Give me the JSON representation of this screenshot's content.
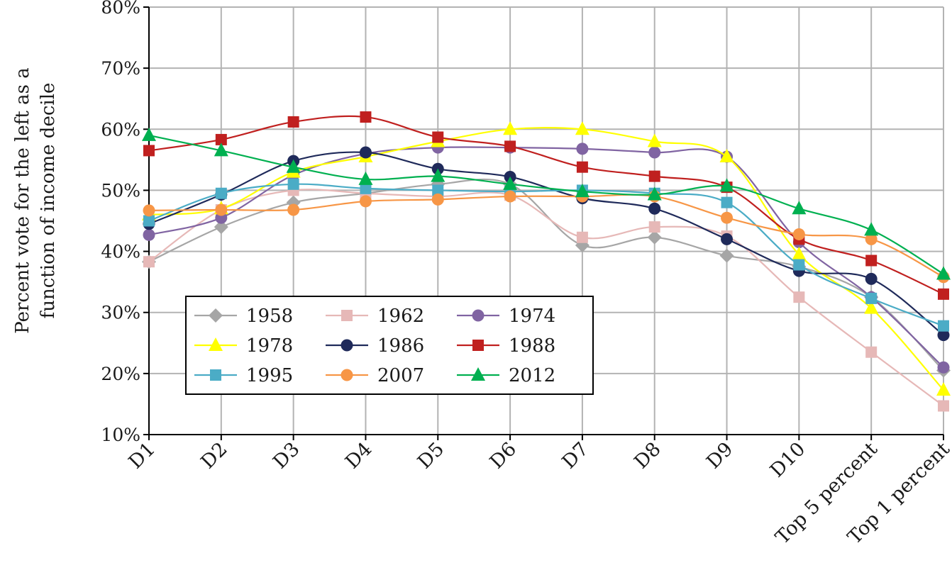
{
  "chart_data": {
    "type": "line",
    "ylabel_lines": [
      "Percent vote for the left as a",
      "function of income decile"
    ],
    "categories": [
      "D1",
      "D2",
      "D3",
      "D4",
      "D5",
      "D6",
      "D7",
      "D8",
      "D9",
      "D10",
      "Top 5 percent",
      "Top 1 percent"
    ],
    "ylim": [
      10,
      80
    ],
    "yticks": [
      10,
      20,
      30,
      40,
      50,
      60,
      70,
      80
    ],
    "ytick_labels": [
      "10%",
      "20%",
      "30%",
      "40%",
      "50%",
      "60%",
      "70%",
      "80%"
    ],
    "grid": true,
    "legend_position": "bottom-left",
    "series": [
      {
        "name": "1958",
        "color": "#a6a6a6",
        "marker": "diamond",
        "values": [
          38.3,
          44.0,
          48.0,
          49.5,
          51.0,
          51.0,
          41.0,
          42.3,
          39.3,
          37.5,
          32.5,
          20.5
        ]
      },
      {
        "name": "1962",
        "color": "#e6b8b7",
        "marker": "square",
        "values": [
          38.3,
          46.8,
          50.0,
          49.5,
          49.0,
          49.2,
          42.3,
          44.0,
          42.5,
          32.5,
          23.5,
          14.7
        ]
      },
      {
        "name": "1974",
        "color": "#8064a2",
        "marker": "circle",
        "values": [
          42.7,
          45.5,
          52.5,
          56.0,
          57.0,
          57.0,
          56.8,
          56.2,
          55.5,
          41.5,
          32.5,
          21.0
        ]
      },
      {
        "name": "1978",
        "color": "#ffff00",
        "marker": "triangle",
        "values": [
          46.0,
          47.0,
          53.0,
          55.5,
          58.0,
          60.0,
          60.0,
          58.0,
          55.5,
          39.5,
          30.7,
          17.3
        ]
      },
      {
        "name": "1986",
        "color": "#1f2a5a",
        "marker": "circle",
        "values": [
          44.5,
          49.3,
          54.8,
          56.2,
          53.5,
          52.2,
          48.7,
          47.0,
          42.0,
          36.8,
          35.5,
          26.3
        ]
      },
      {
        "name": "1988",
        "color": "#c0201f",
        "marker": "square",
        "values": [
          56.5,
          58.3,
          61.2,
          62.0,
          58.7,
          57.2,
          53.8,
          52.3,
          50.5,
          42.0,
          38.5,
          33.0
        ]
      },
      {
        "name": "1995",
        "color": "#4bacc6",
        "marker": "square",
        "values": [
          45.0,
          49.5,
          51.0,
          50.3,
          50.0,
          49.8,
          50.0,
          49.5,
          48.0,
          37.8,
          32.3,
          27.8
        ]
      },
      {
        "name": "2007",
        "color": "#f79646",
        "marker": "circle",
        "values": [
          46.7,
          46.8,
          46.8,
          48.2,
          48.5,
          49.0,
          49.0,
          49.0,
          45.5,
          42.8,
          42.0,
          35.8
        ]
      },
      {
        "name": "2012",
        "color": "#00b050",
        "marker": "triangle",
        "values": [
          59.0,
          56.5,
          53.8,
          51.8,
          52.3,
          51.0,
          49.8,
          49.3,
          50.7,
          47.0,
          43.5,
          36.3
        ]
      }
    ]
  }
}
